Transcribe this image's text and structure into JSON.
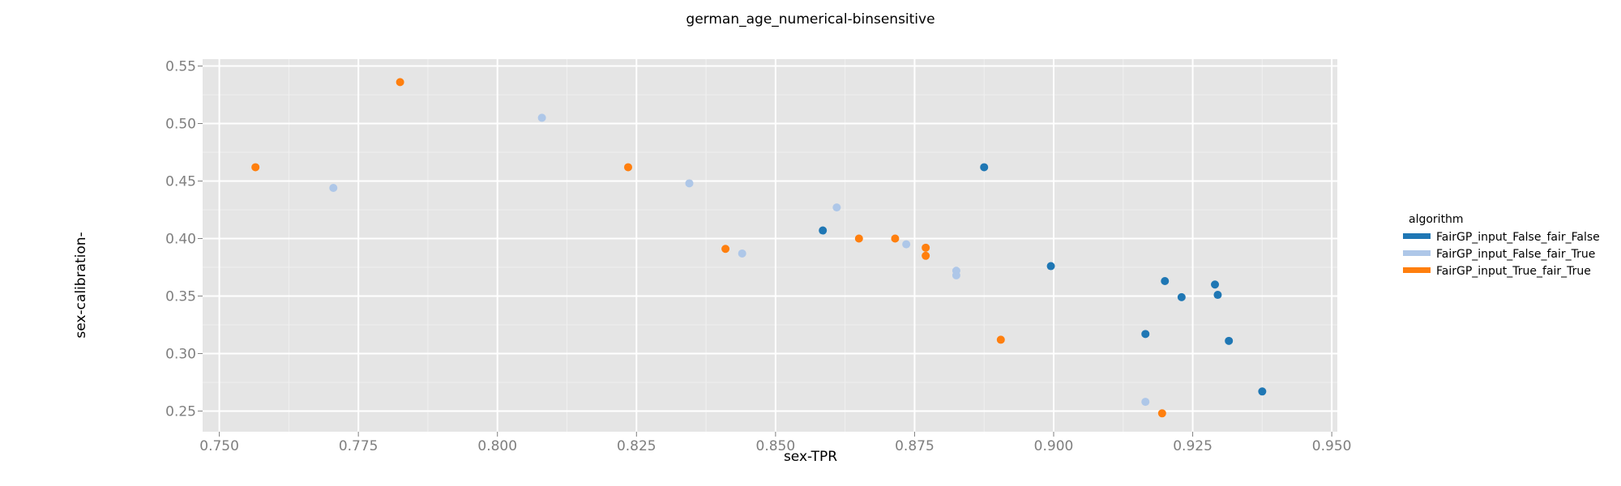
{
  "chart_data": {
    "type": "scatter",
    "title": "german_age_numerical-binsensitive",
    "xlabel": "sex-TPR",
    "ylabel": "sex-calibration-",
    "xlim": [
      0.747,
      0.951
    ],
    "ylim": [
      0.232,
      0.556
    ],
    "xticks": [
      0.75,
      0.775,
      0.8,
      0.825,
      0.85,
      0.875,
      0.9,
      0.925,
      0.95
    ],
    "xtick_labels": [
      "0.750",
      "0.775",
      "0.800",
      "0.825",
      "0.850",
      "0.875",
      "0.900",
      "0.925",
      "0.950"
    ],
    "yticks": [
      0.25,
      0.3,
      0.35,
      0.4,
      0.45,
      0.5,
      0.55
    ],
    "ytick_labels": [
      "0.25",
      "0.30",
      "0.35",
      "0.40",
      "0.45",
      "0.50",
      "0.55"
    ],
    "grid": true,
    "legend_title": "algorithm",
    "legend_position": "right",
    "series": [
      {
        "name": "FairGP_input_False_fair_False",
        "color": "#1f77b4",
        "points": [
          [
            0.8875,
            0.462
          ],
          [
            0.8585,
            0.407
          ],
          [
            0.8995,
            0.376
          ],
          [
            0.92,
            0.363
          ],
          [
            0.929,
            0.36
          ],
          [
            0.923,
            0.349
          ],
          [
            0.9295,
            0.351
          ],
          [
            0.9165,
            0.317
          ],
          [
            0.9315,
            0.311
          ],
          [
            0.9375,
            0.267
          ]
        ]
      },
      {
        "name": "FairGP_input_False_fair_True",
        "color": "#aec7e8",
        "points": [
          [
            0.808,
            0.505
          ],
          [
            0.7705,
            0.444
          ],
          [
            0.8345,
            0.448
          ],
          [
            0.861,
            0.427
          ],
          [
            0.844,
            0.387
          ],
          [
            0.8735,
            0.395
          ],
          [
            0.8825,
            0.372
          ],
          [
            0.8825,
            0.368
          ],
          [
            0.9165,
            0.258
          ]
        ]
      },
      {
        "name": "FairGP_input_True_fair_True",
        "color": "#ff7f0e",
        "points": [
          [
            0.7825,
            0.536
          ],
          [
            0.7565,
            0.462
          ],
          [
            0.8235,
            0.462
          ],
          [
            0.841,
            0.391
          ],
          [
            0.865,
            0.4
          ],
          [
            0.8715,
            0.4
          ],
          [
            0.877,
            0.392
          ],
          [
            0.877,
            0.385
          ],
          [
            0.8905,
            0.312
          ],
          [
            0.9195,
            0.248
          ]
        ]
      }
    ]
  }
}
